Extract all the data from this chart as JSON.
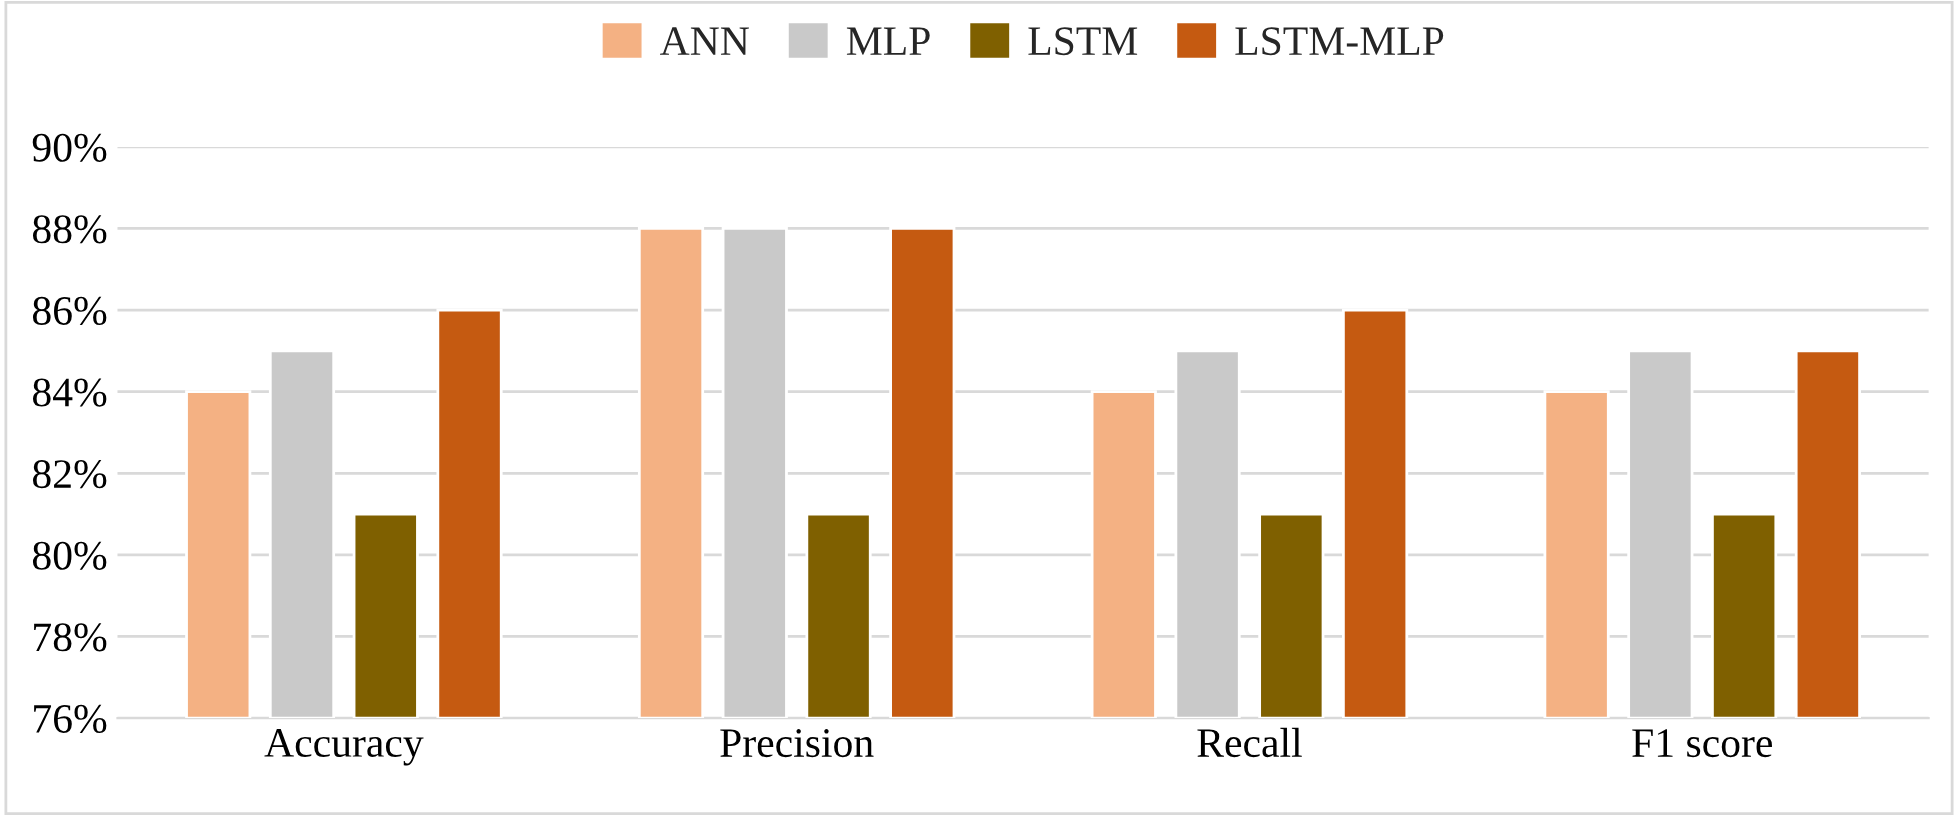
{
  "chart_data": {
    "type": "bar",
    "categories": [
      "Accuracy",
      "Precision",
      "Recall",
      "F1 score"
    ],
    "series": [
      {
        "name": "ANN",
        "color": "#f4b183",
        "values": [
          84,
          88,
          84,
          84
        ]
      },
      {
        "name": "MLP",
        "color": "#c9c9c9",
        "values": [
          85,
          88,
          85,
          85
        ]
      },
      {
        "name": "LSTM",
        "color": "#7f6000",
        "values": [
          81,
          81,
          81,
          81
        ]
      },
      {
        "name": "LSTM-MLP",
        "color": "#c55a11",
        "values": [
          86,
          88,
          86,
          85
        ]
      }
    ],
    "ylim": [
      76,
      90
    ],
    "yticks": [
      {
        "value": 76,
        "label": "76%"
      },
      {
        "value": 78,
        "label": "78%"
      },
      {
        "value": 80,
        "label": "80%"
      },
      {
        "value": 82,
        "label": "82%"
      },
      {
        "value": 84,
        "label": "84%"
      },
      {
        "value": 86,
        "label": "86%"
      },
      {
        "value": 88,
        "label": "88%"
      },
      {
        "value": 90,
        "label": "90%"
      }
    ],
    "grid": "y",
    "legend": "top"
  }
}
